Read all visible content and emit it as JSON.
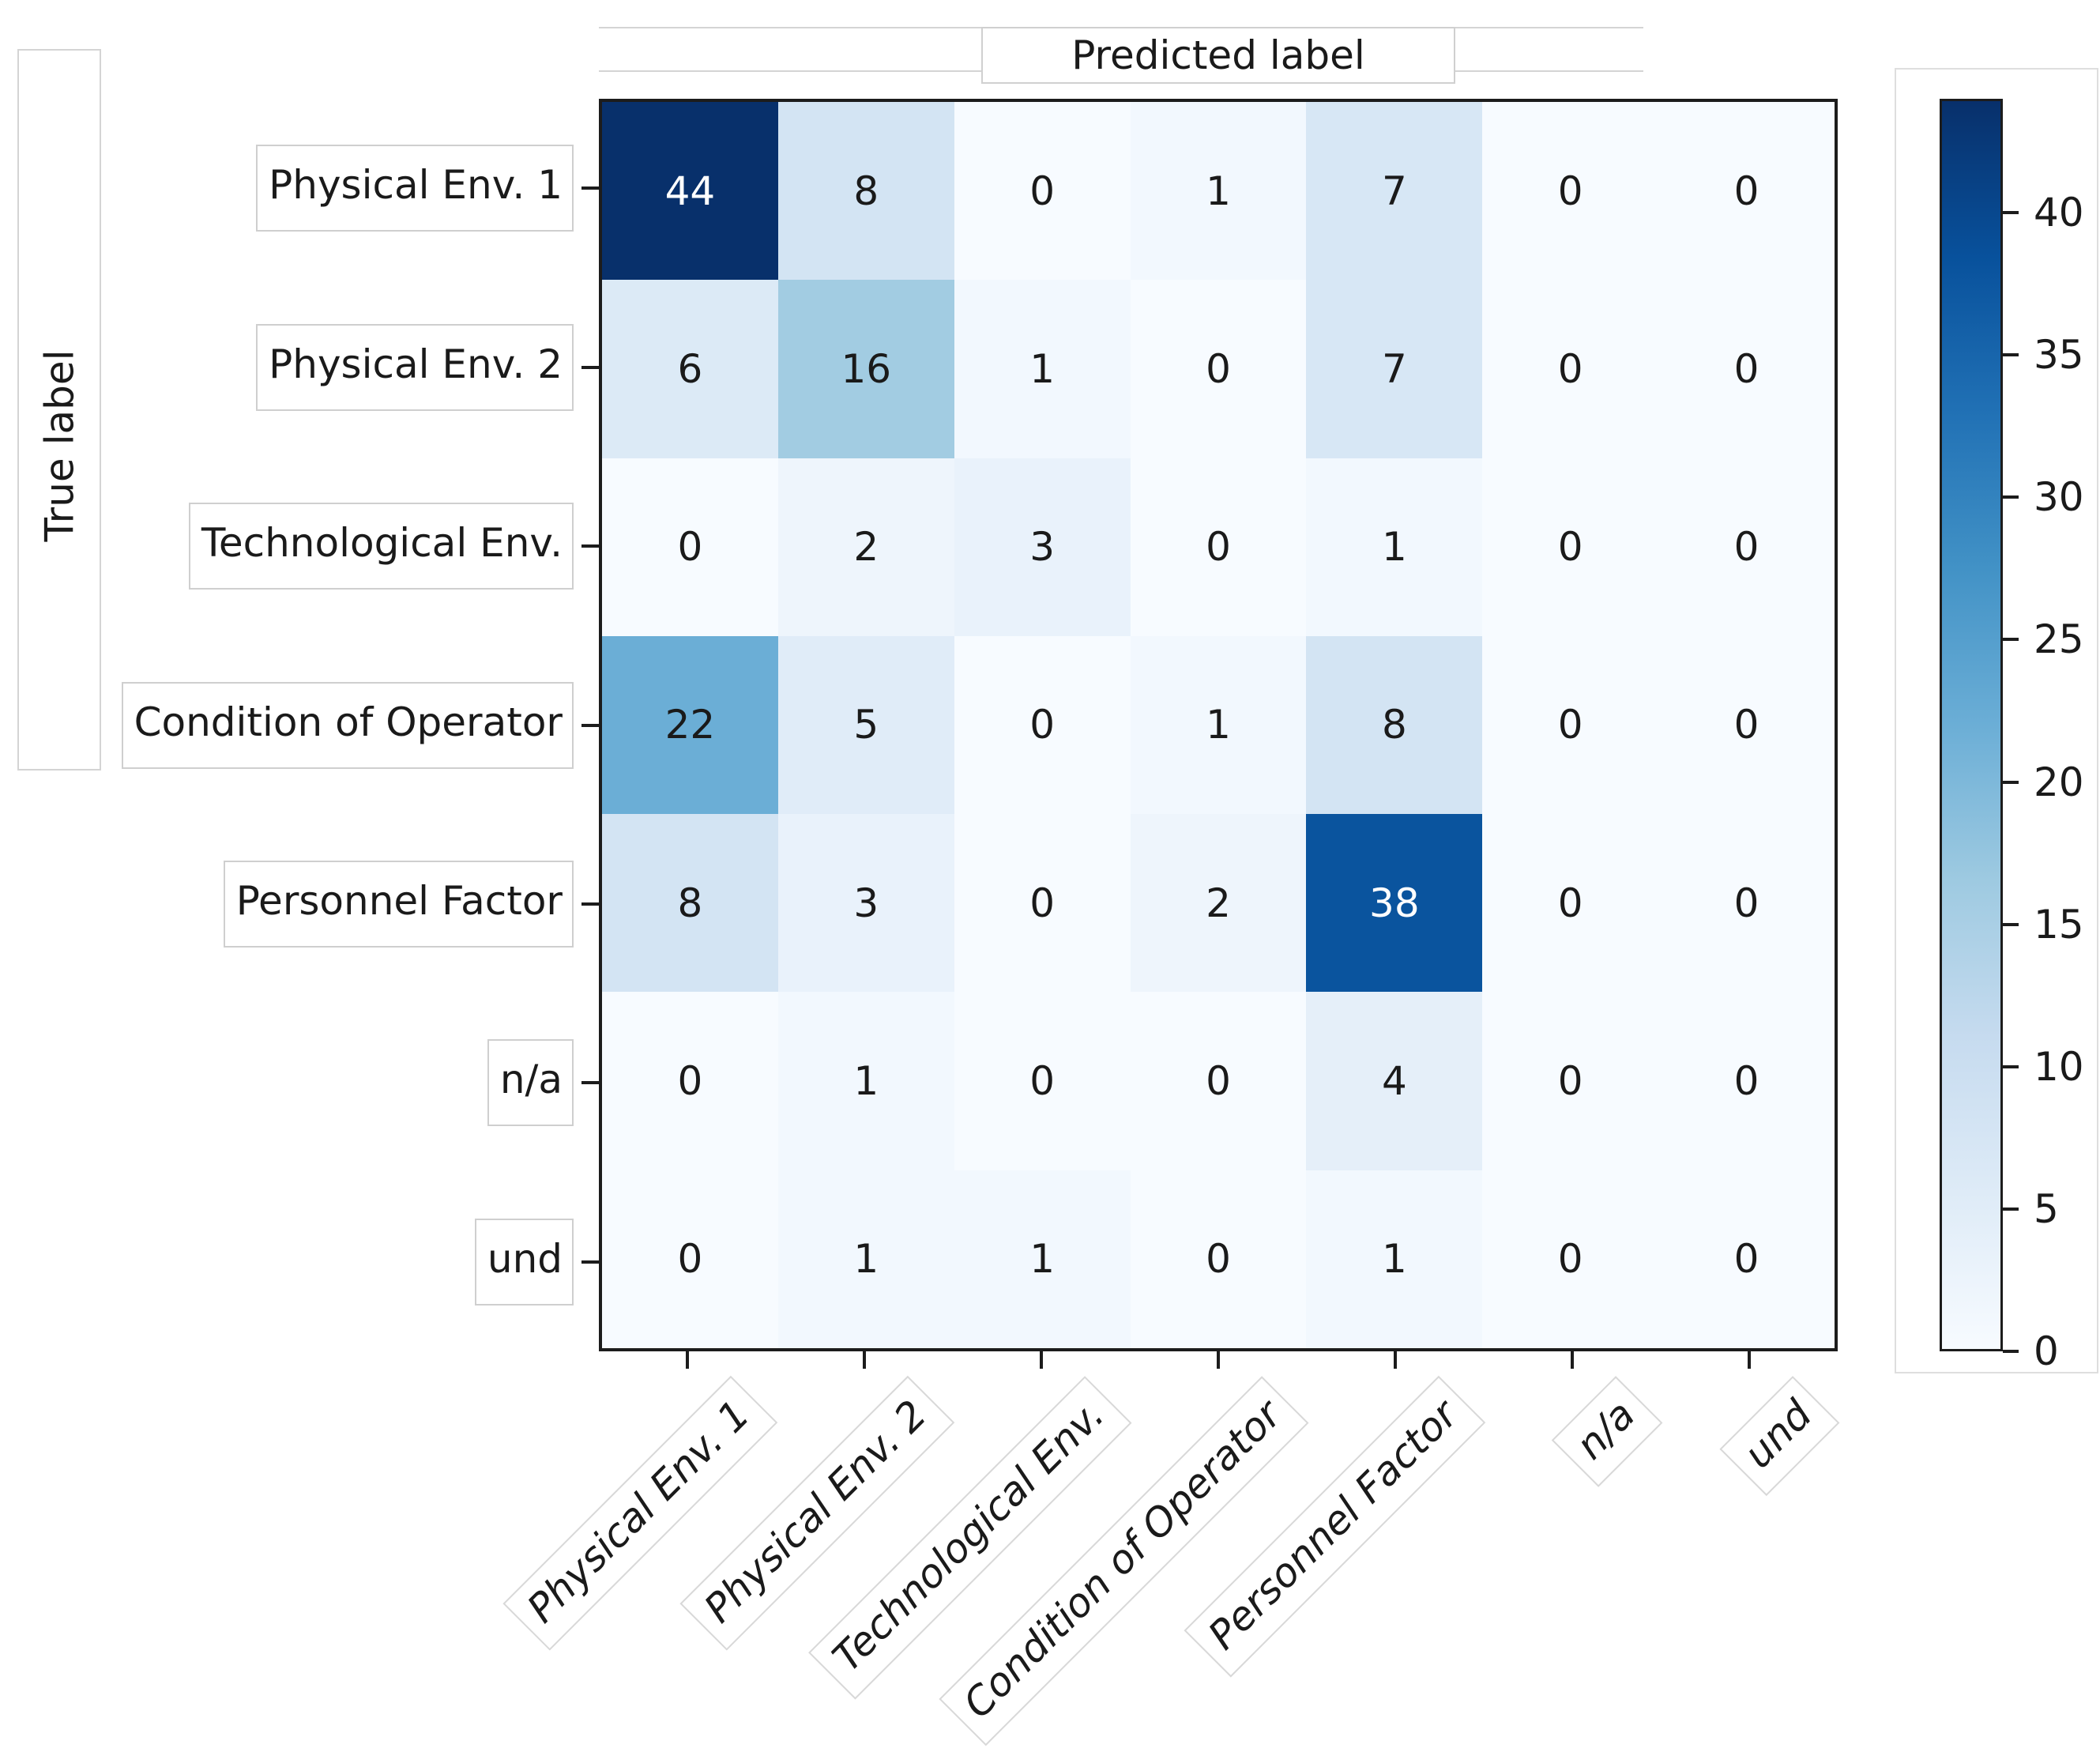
{
  "chart_data": {
    "type": "heatmap",
    "subtype": "confusion-matrix",
    "title": "Predicted label",
    "xlabel": "Predicted label",
    "ylabel": "True label",
    "categories": [
      "Physical Env. 1",
      "Physical Env. 2",
      "Technological Env.",
      "Condition of Operator",
      "Personnel Factor",
      "n/a",
      "und"
    ],
    "matrix": [
      [
        44,
        8,
        0,
        1,
        7,
        0,
        0
      ],
      [
        6,
        16,
        1,
        0,
        7,
        0,
        0
      ],
      [
        0,
        2,
        3,
        0,
        1,
        0,
        0
      ],
      [
        22,
        5,
        0,
        1,
        8,
        0,
        0
      ],
      [
        8,
        3,
        0,
        2,
        38,
        0,
        0
      ],
      [
        0,
        1,
        0,
        0,
        4,
        0,
        0
      ],
      [
        0,
        1,
        1,
        0,
        1,
        0,
        0
      ]
    ],
    "vmin": 0,
    "vmax": 44,
    "colormap": "Blues",
    "colorbar_ticks": [
      0,
      5,
      10,
      15,
      20,
      25,
      30,
      35,
      40
    ],
    "colormap_stops": [
      {
        "t": 0.0,
        "color": "#f7fbff"
      },
      {
        "t": 0.125,
        "color": "#deebf7"
      },
      {
        "t": 0.25,
        "color": "#c6dbef"
      },
      {
        "t": 0.375,
        "color": "#9ecae1"
      },
      {
        "t": 0.5,
        "color": "#6baed6"
      },
      {
        "t": 0.625,
        "color": "#4292c6"
      },
      {
        "t": 0.75,
        "color": "#2171b5"
      },
      {
        "t": 0.875,
        "color": "#08519c"
      },
      {
        "t": 1.0,
        "color": "#08306b"
      }
    ],
    "grid": false,
    "legend_position": "right-colorbar",
    "x_tick_style": "italic, rotated 45",
    "axis_color": "#1c1c1c",
    "cell_text_dark": "#1a1a1a",
    "cell_text_light": "#ffffff"
  }
}
